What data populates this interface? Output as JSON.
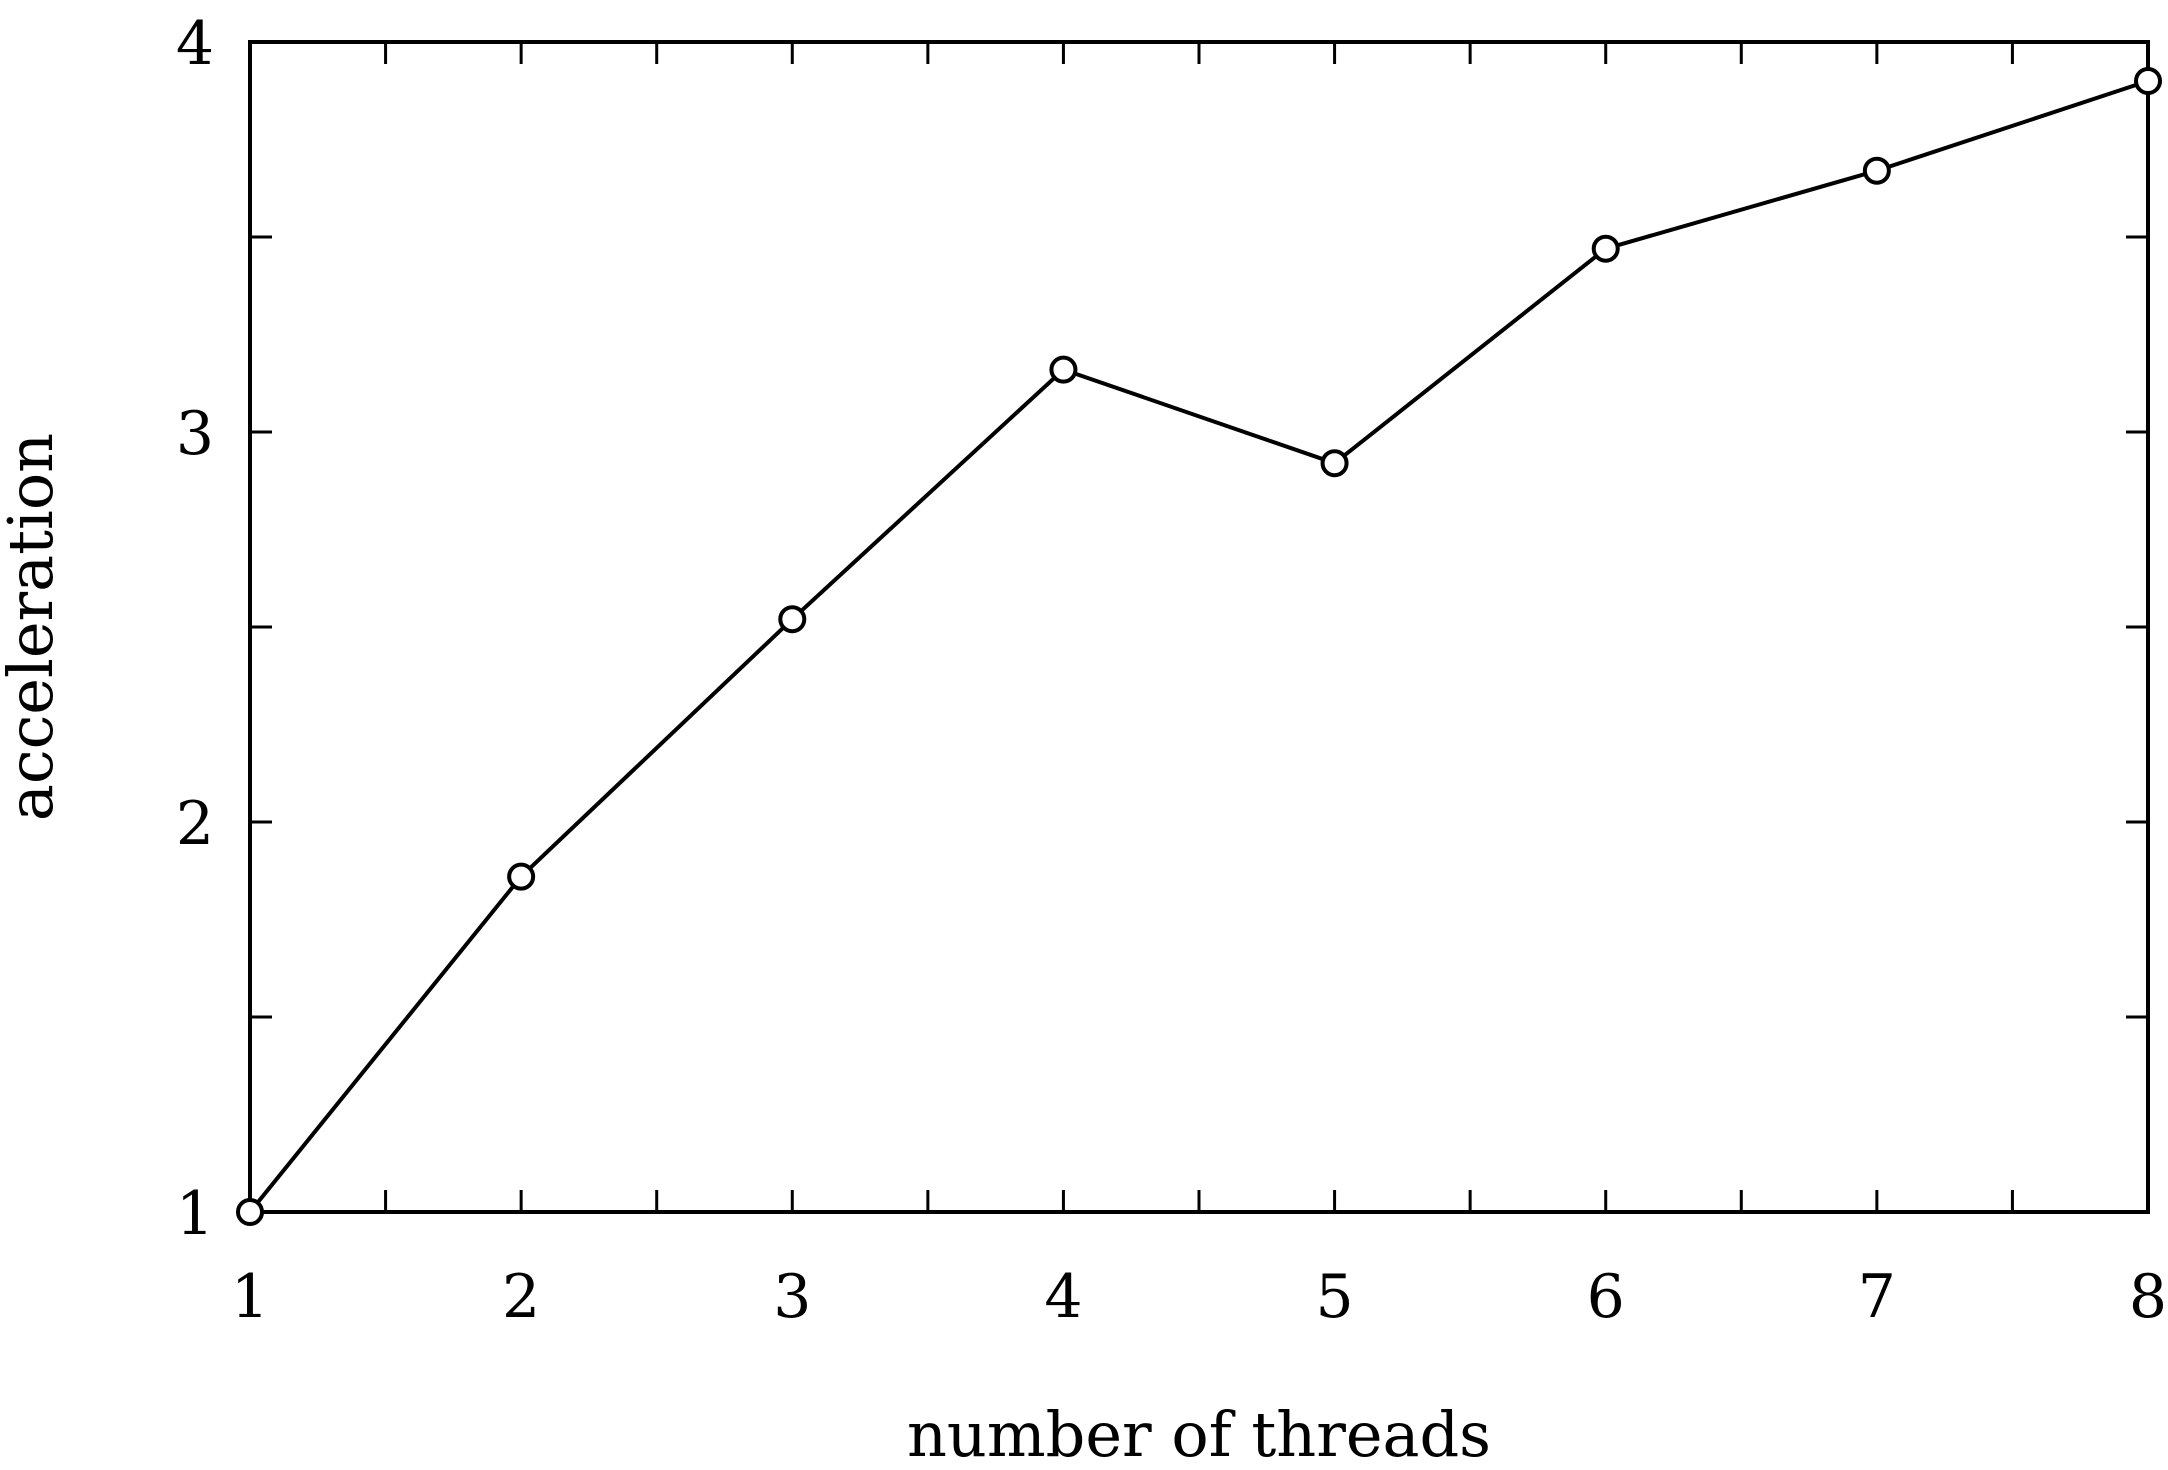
{
  "chart_data": {
    "type": "line",
    "title": "",
    "xlabel": "number of threads",
    "ylabel": "acceleration",
    "xlim": [
      1,
      8
    ],
    "ylim": [
      1,
      4
    ],
    "xticks": [
      1,
      2,
      3,
      4,
      5,
      6,
      7,
      8
    ],
    "yticks": [
      1,
      2,
      3,
      4
    ],
    "yminor": [
      1.5,
      2.5,
      3.5
    ],
    "xminor": [
      1.5,
      2.5,
      3.5,
      4.5,
      5.5,
      6.5,
      7.5
    ],
    "grid": false,
    "legend": "none",
    "series": [
      {
        "marker": "open-circle",
        "color": "#000000",
        "x": [
          1,
          2,
          3,
          4,
          5,
          6,
          7,
          8
        ],
        "y": [
          1.0,
          1.86,
          2.52,
          3.16,
          2.92,
          3.47,
          3.67,
          3.9
        ]
      }
    ]
  }
}
